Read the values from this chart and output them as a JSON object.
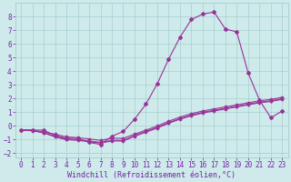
{
  "xlabel": "Windchill (Refroidissement éolien,°C)",
  "xlim": [
    -0.5,
    23.5
  ],
  "ylim": [
    -2.3,
    9.0
  ],
  "xticks": [
    0,
    1,
    2,
    3,
    4,
    5,
    6,
    7,
    8,
    9,
    10,
    11,
    12,
    13,
    14,
    15,
    16,
    17,
    18,
    19,
    20,
    21,
    22,
    23
  ],
  "yticks": [
    -2,
    -1,
    0,
    1,
    2,
    3,
    4,
    5,
    6,
    7,
    8
  ],
  "bg_color": "#ceeaea",
  "grid_color": "#a0c8c8",
  "line_color": "#993399",
  "line1_x": [
    0,
    1,
    2,
    3,
    4,
    5,
    6,
    7,
    8,
    9,
    10,
    11,
    12,
    13,
    14,
    15,
    16,
    17,
    18,
    19,
    20,
    21,
    22,
    23
  ],
  "line1_y": [
    -0.3,
    -0.3,
    -0.3,
    -0.7,
    -0.9,
    -0.9,
    -1.2,
    -1.35,
    -0.75,
    -0.4,
    0.5,
    1.6,
    3.1,
    4.9,
    6.5,
    7.8,
    8.2,
    8.35,
    7.1,
    6.9,
    3.9,
    1.9,
    0.6,
    1.1
  ],
  "line2_x": [
    0,
    1,
    2,
    3,
    4,
    5,
    6,
    7,
    8,
    9,
    10,
    11,
    12,
    13,
    14,
    15,
    16,
    17,
    18,
    19,
    20,
    21,
    22,
    23
  ],
  "line2_y": [
    -0.3,
    -0.3,
    -0.45,
    -0.6,
    -0.8,
    -0.85,
    -0.95,
    -1.05,
    -0.9,
    -0.9,
    -0.6,
    -0.3,
    0.0,
    0.35,
    0.65,
    0.9,
    1.1,
    1.25,
    1.4,
    1.55,
    1.7,
    1.85,
    1.95,
    2.1
  ],
  "line3_x": [
    0,
    1,
    2,
    3,
    4,
    5,
    6,
    7,
    8,
    9,
    10,
    11,
    12,
    13,
    14,
    15,
    16,
    17,
    18,
    19,
    20,
    21,
    22,
    23
  ],
  "line3_y": [
    -0.3,
    -0.3,
    -0.5,
    -0.8,
    -1.0,
    -1.05,
    -1.15,
    -1.25,
    -1.1,
    -1.1,
    -0.75,
    -0.45,
    -0.15,
    0.2,
    0.5,
    0.75,
    0.95,
    1.1,
    1.25,
    1.4,
    1.55,
    1.7,
    1.8,
    1.95
  ],
  "line4_x": [
    0,
    1,
    2,
    3,
    4,
    5,
    6,
    7,
    8,
    9,
    10,
    11,
    12,
    13,
    14,
    15,
    16,
    17,
    18,
    19,
    20,
    21,
    22,
    23
  ],
  "line4_y": [
    -0.3,
    -0.35,
    -0.5,
    -0.75,
    -0.95,
    -1.0,
    -1.1,
    -1.2,
    -1.05,
    -1.05,
    -0.7,
    -0.4,
    -0.1,
    0.25,
    0.55,
    0.8,
    1.0,
    1.15,
    1.3,
    1.45,
    1.6,
    1.75,
    1.85,
    2.0
  ],
  "marker_size": 2.0,
  "line_width": 0.8,
  "font_color": "#7722aa",
  "font_size_label": 6.0,
  "font_size_tick": 5.5
}
